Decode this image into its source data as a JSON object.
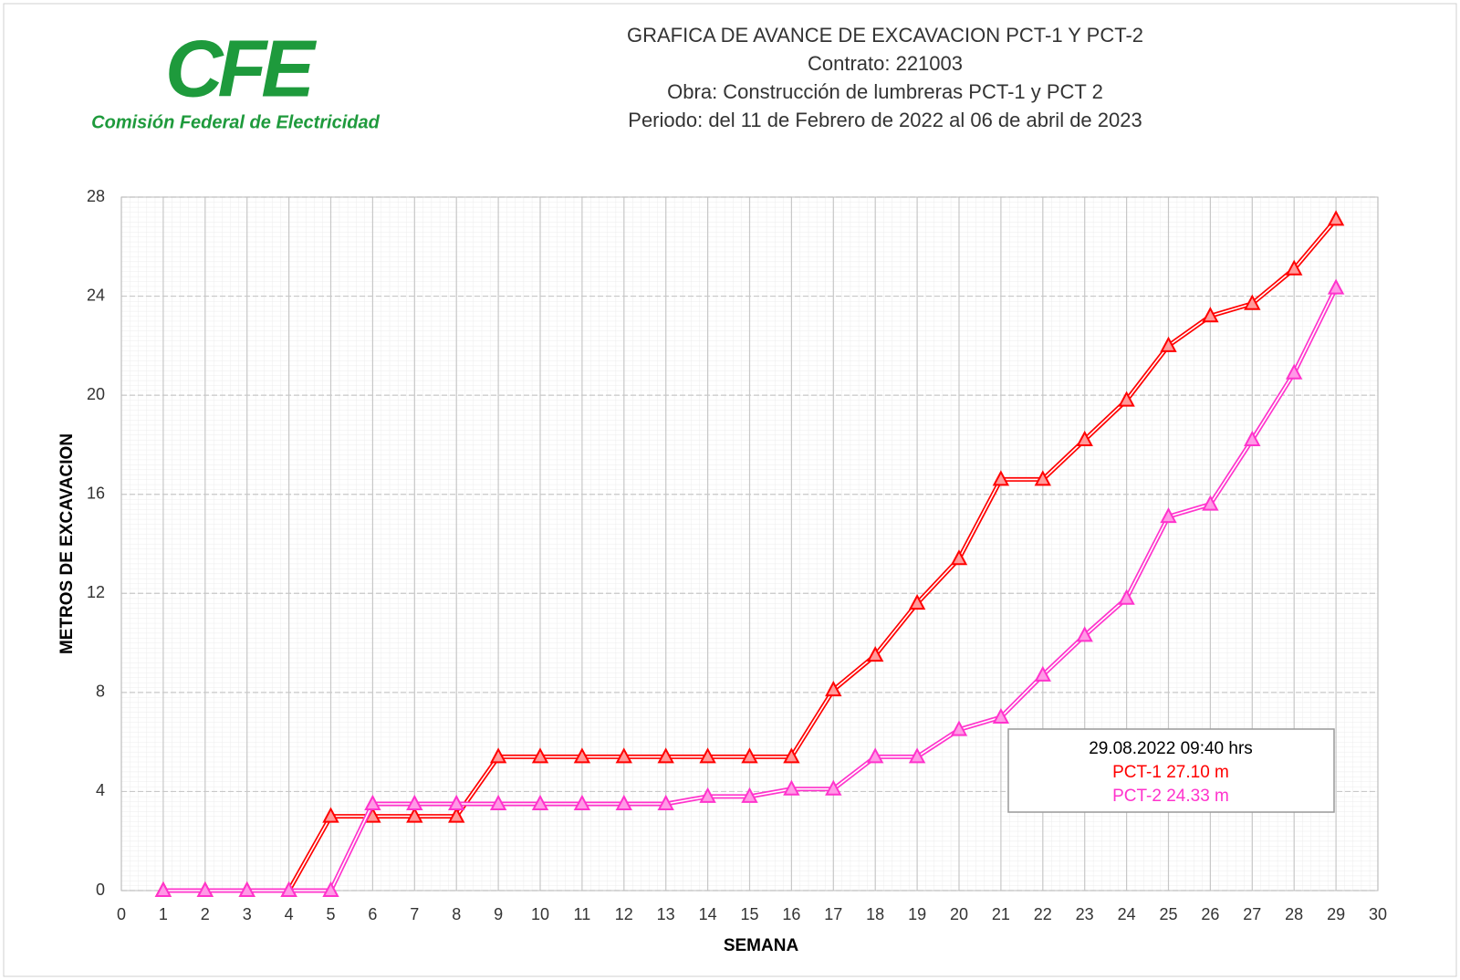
{
  "chart_data": {
    "type": "line",
    "logo": {
      "mark": "CFE",
      "name": "Comisión Federal de Electricidad"
    },
    "title": [
      "GRAFICA DE AVANCE DE EXCAVACION PCT-1 Y PCT-2",
      "Contrato: 221003",
      "Obra: Construcción de lumbreras PCT-1 y PCT 2",
      "Periodo: del 11 de Febrero de 2022 al 06 de abril de 2023"
    ],
    "x_label": "SEMANA",
    "y_label": "METROS DE EXCAVACION",
    "x": [
      1,
      2,
      3,
      4,
      5,
      6,
      7,
      8,
      9,
      10,
      11,
      12,
      13,
      14,
      15,
      16,
      17,
      18,
      19,
      20,
      21,
      22,
      23,
      24,
      25,
      26,
      27,
      28,
      29
    ],
    "series": [
      {
        "name": "PCT-1",
        "color": "#ff0000",
        "marker_fill": "#ff9a9a",
        "values": [
          0,
          0,
          0,
          0,
          3,
          3,
          3,
          3,
          5.4,
          5.4,
          5.4,
          5.4,
          5.4,
          5.4,
          5.4,
          5.4,
          8.1,
          9.5,
          11.6,
          13.4,
          16.6,
          16.6,
          18.2,
          19.8,
          22,
          23.2,
          23.7,
          25.1,
          27.1
        ]
      },
      {
        "name": "PCT-2",
        "color": "#ff33cc",
        "marker_fill": "#ff99e6",
        "values": [
          0,
          0,
          0,
          0,
          0,
          3.5,
          3.5,
          3.5,
          3.5,
          3.5,
          3.5,
          3.5,
          3.5,
          3.8,
          3.8,
          4.1,
          4.1,
          5.4,
          5.4,
          6.5,
          7,
          8.7,
          10.3,
          11.8,
          15.1,
          15.6,
          18.2,
          20.9,
          24.33
        ]
      }
    ],
    "annotation": {
      "lines": [
        "29.08.2022 09:40 hrs",
        "PCT-1  27.10 m",
        "PCT-2  24.33 m"
      ],
      "colors": [
        "#000000",
        "#ff0000",
        "#ff33cc"
      ]
    },
    "xlim": [
      0,
      30
    ],
    "xticks": [
      0,
      1,
      2,
      3,
      4,
      5,
      6,
      7,
      8,
      9,
      10,
      11,
      12,
      13,
      14,
      15,
      16,
      17,
      18,
      19,
      20,
      21,
      22,
      23,
      24,
      25,
      26,
      27,
      28,
      29,
      30
    ],
    "ylim": [
      0,
      28
    ],
    "yticks": [
      0,
      4,
      8,
      12,
      16,
      20,
      24,
      28
    ],
    "grid": true
  }
}
